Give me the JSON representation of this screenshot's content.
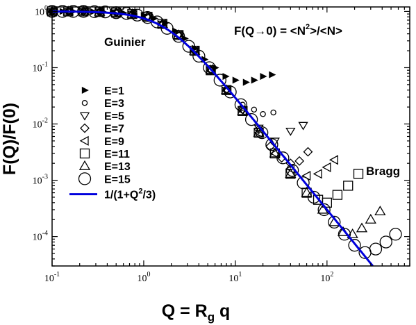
{
  "chart_data": {
    "type": "scatter",
    "xscale": "log",
    "yscale": "log",
    "xlim": [
      0.1,
      800
    ],
    "ylim": [
      3e-05,
      1.2
    ],
    "grid": false,
    "legend_placement": "left",
    "x_ticks": [
      {
        "value": 0.1,
        "base": "10",
        "exp": "-1"
      },
      {
        "value": 1,
        "base": "10",
        "exp": "0"
      },
      {
        "value": 10,
        "base": "10",
        "exp": "1"
      },
      {
        "value": 100,
        "base": "10",
        "exp": "2"
      }
    ],
    "y_ticks": [
      {
        "value": 0.0001,
        "base": "10",
        "exp": "-4"
      },
      {
        "value": 0.001,
        "base": "10",
        "exp": "-3"
      },
      {
        "value": 0.01,
        "base": "10",
        "exp": "-2"
      },
      {
        "value": 0.1,
        "base": "10",
        "exp": "-1"
      },
      {
        "value": 1,
        "base": "10",
        "exp": "0"
      }
    ],
    "xlabel": {
      "main": "Q = R",
      "sub": "g",
      "tail": " q"
    },
    "ylabel": "F(Q)/F(0)",
    "annotations": {
      "guinier": "Guinier",
      "bragg": "Bragg",
      "formula": {
        "pre": "F(Q",
        "arrow": "→",
        "mid": "0) = <N",
        "sup": "2",
        "post": ">/<N>"
      }
    },
    "fit": {
      "label": {
        "pre": "1/(1+Q",
        "sup": "2",
        "post": "/3)"
      },
      "color": "#0000dd",
      "formula": "1/(1+Q^2/3)"
    },
    "series": [
      {
        "name": "E=1",
        "marker": "triangle-right",
        "points": [
          [
            0.1,
            1
          ],
          [
            0.13,
            1
          ],
          [
            0.17,
            1
          ],
          [
            0.22,
            1
          ],
          [
            0.28,
            0.99
          ],
          [
            0.36,
            0.98
          ],
          [
            0.46,
            0.97
          ],
          [
            0.6,
            0.94
          ],
          [
            0.78,
            0.9
          ],
          [
            1.0,
            0.85
          ],
          [
            1.3,
            0.75
          ],
          [
            1.7,
            0.62
          ],
          [
            2.2,
            0.45
          ],
          [
            2.8,
            0.33
          ],
          [
            3.6,
            0.22
          ],
          [
            4.6,
            0.14
          ],
          [
            6.0,
            0.1
          ],
          [
            7.8,
            0.07
          ],
          [
            10,
            0.06
          ],
          [
            13,
            0.055
          ],
          [
            16,
            0.06
          ],
          [
            20,
            0.07
          ],
          [
            25,
            0.075
          ]
        ]
      },
      {
        "name": "E=3",
        "marker": "circle-small",
        "points": [
          [
            0.1,
            1
          ],
          [
            0.15,
            1
          ],
          [
            0.22,
            1
          ],
          [
            0.33,
            0.98
          ],
          [
            0.5,
            0.95
          ],
          [
            0.75,
            0.9
          ],
          [
            1.1,
            0.8
          ],
          [
            1.6,
            0.6
          ],
          [
            2.4,
            0.38
          ],
          [
            3.6,
            0.2
          ],
          [
            5.4,
            0.09
          ],
          [
            8,
            0.04
          ],
          [
            12,
            0.022
          ],
          [
            16,
            0.018
          ],
          [
            20,
            0.015
          ],
          [
            26,
            0.016
          ]
        ]
      },
      {
        "name": "E=5",
        "marker": "triangle-down",
        "points": [
          [
            0.1,
            1
          ],
          [
            0.15,
            1
          ],
          [
            0.22,
            1
          ],
          [
            0.33,
            0.98
          ],
          [
            0.5,
            0.95
          ],
          [
            0.75,
            0.9
          ],
          [
            1.1,
            0.8
          ],
          [
            1.6,
            0.6
          ],
          [
            2.4,
            0.38
          ],
          [
            3.6,
            0.2
          ],
          [
            5.4,
            0.09
          ],
          [
            8,
            0.04
          ],
          [
            12,
            0.018
          ],
          [
            18,
            0.0085
          ],
          [
            27,
            0.005
          ],
          [
            40,
            0.0075
          ],
          [
            55,
            0.0095
          ]
        ]
      },
      {
        "name": "E=7",
        "marker": "diamond",
        "points": [
          [
            0.1,
            1
          ],
          [
            0.15,
            1
          ],
          [
            0.22,
            1
          ],
          [
            0.33,
            0.98
          ],
          [
            0.5,
            0.95
          ],
          [
            0.75,
            0.9
          ],
          [
            1.1,
            0.8
          ],
          [
            1.6,
            0.6
          ],
          [
            2.4,
            0.38
          ],
          [
            3.6,
            0.2
          ],
          [
            5.4,
            0.09
          ],
          [
            8,
            0.04
          ],
          [
            12,
            0.018
          ],
          [
            18,
            0.008
          ],
          [
            24,
            0.004
          ],
          [
            32,
            0.0025
          ],
          [
            40,
            0.002
          ],
          [
            50,
            0.0022
          ],
          [
            62,
            0.0032
          ]
        ]
      },
      {
        "name": "E=9",
        "marker": "triangle-left",
        "points": [
          [
            0.1,
            1
          ],
          [
            0.15,
            1
          ],
          [
            0.22,
            1
          ],
          [
            0.33,
            0.98
          ],
          [
            0.5,
            0.95
          ],
          [
            0.75,
            0.9
          ],
          [
            1.1,
            0.8
          ],
          [
            1.6,
            0.6
          ],
          [
            2.4,
            0.38
          ],
          [
            3.6,
            0.2
          ],
          [
            5.4,
            0.09
          ],
          [
            8,
            0.04
          ],
          [
            12,
            0.017
          ],
          [
            18,
            0.007
          ],
          [
            27,
            0.003
          ],
          [
            40,
            0.0016
          ],
          [
            60,
            0.0012
          ],
          [
            80,
            0.0013
          ],
          [
            100,
            0.0017
          ],
          [
            120,
            0.0023
          ]
        ]
      },
      {
        "name": "E=11",
        "marker": "square",
        "points": [
          [
            0.1,
            1
          ],
          [
            0.15,
            1
          ],
          [
            0.22,
            1
          ],
          [
            0.33,
            0.98
          ],
          [
            0.5,
            0.95
          ],
          [
            0.75,
            0.9
          ],
          [
            1.1,
            0.8
          ],
          [
            1.6,
            0.6
          ],
          [
            2.4,
            0.38
          ],
          [
            3.6,
            0.2
          ],
          [
            5.4,
            0.09
          ],
          [
            8,
            0.04
          ],
          [
            12,
            0.017
          ],
          [
            18,
            0.007
          ],
          [
            27,
            0.003
          ],
          [
            40,
            0.0013
          ],
          [
            60,
            0.0006
          ],
          [
            80,
            0.00045
          ],
          [
            100,
            0.0004
          ],
          [
            130,
            0.00055
          ],
          [
            170,
            0.0008
          ],
          [
            220,
            0.0013
          ]
        ]
      },
      {
        "name": "E=13",
        "marker": "triangle-up",
        "points": [
          [
            0.1,
            1
          ],
          [
            0.15,
            1
          ],
          [
            0.22,
            1
          ],
          [
            0.33,
            0.98
          ],
          [
            0.5,
            0.95
          ],
          [
            0.75,
            0.9
          ],
          [
            1.1,
            0.8
          ],
          [
            1.6,
            0.6
          ],
          [
            2.4,
            0.38
          ],
          [
            3.6,
            0.2
          ],
          [
            5.4,
            0.09
          ],
          [
            8,
            0.04
          ],
          [
            12,
            0.017
          ],
          [
            18,
            0.007
          ],
          [
            27,
            0.003
          ],
          [
            40,
            0.0013
          ],
          [
            60,
            0.0006
          ],
          [
            90,
            0.0003
          ],
          [
            120,
            0.00018
          ],
          [
            150,
            0.00012
          ],
          [
            190,
            0.00011
          ],
          [
            240,
            0.00014
          ],
          [
            300,
            0.0002
          ],
          [
            380,
            0.00028
          ]
        ]
      },
      {
        "name": "E=15",
        "marker": "circle-large",
        "points": [
          [
            0.1,
            1
          ],
          [
            0.13,
            1
          ],
          [
            0.17,
            1
          ],
          [
            0.22,
            1
          ],
          [
            0.29,
            0.99
          ],
          [
            0.38,
            0.98
          ],
          [
            0.5,
            0.95
          ],
          [
            0.65,
            0.92
          ],
          [
            0.85,
            0.86
          ],
          [
            1.1,
            0.78
          ],
          [
            1.4,
            0.65
          ],
          [
            1.8,
            0.5
          ],
          [
            2.4,
            0.36
          ],
          [
            3.1,
            0.24
          ],
          [
            4,
            0.16
          ],
          [
            5.2,
            0.1
          ],
          [
            6.8,
            0.06
          ],
          [
            8.8,
            0.037
          ],
          [
            11.5,
            0.022
          ],
          [
            15,
            0.012
          ],
          [
            19.5,
            0.007
          ],
          [
            25,
            0.0043
          ],
          [
            33,
            0.0025
          ],
          [
            42,
            0.0015
          ],
          [
            55,
            0.0009
          ],
          [
            72,
            0.0005
          ],
          [
            93,
            0.0003
          ],
          [
            120,
            0.00018
          ],
          [
            155,
            0.00011
          ],
          [
            200,
            7e-05
          ],
          [
            260,
            5.2e-05
          ],
          [
            340,
            6e-05
          ],
          [
            440,
            8e-05
          ],
          [
            560,
            0.00011
          ]
        ]
      }
    ]
  }
}
